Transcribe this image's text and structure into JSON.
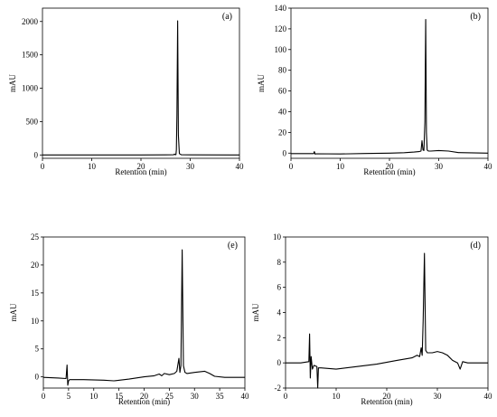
{
  "chart_data": [
    {
      "type": "line",
      "panel_label": "(a)",
      "xlabel": "Retention (min)",
      "ylabel": "mAU",
      "xlim": [
        0,
        40
      ],
      "ylim": [
        -50,
        2200
      ],
      "xticks": [
        0,
        10,
        20,
        30,
        40
      ],
      "yticks": [
        0,
        500,
        1000,
        1500,
        2000
      ],
      "series": [
        {
          "x": [
            0,
            10,
            20,
            25,
            26.6,
            26.8,
            27.0,
            27.1,
            27.2,
            27.3,
            27.45,
            27.6,
            27.8,
            28.2,
            30,
            40
          ],
          "y": [
            0,
            0,
            0,
            2,
            3,
            12,
            3,
            5,
            80,
            600,
            2010,
            300,
            20,
            3,
            1,
            0
          ]
        }
      ]
    },
    {
      "type": "line",
      "panel_label": "(b)",
      "xlabel": "Retention (min)",
      "ylabel": "mAU",
      "xlim": [
        0,
        40
      ],
      "ylim": [
        -5,
        140
      ],
      "xticks": [
        0,
        10,
        20,
        30,
        40
      ],
      "yticks": [
        0,
        20,
        40,
        60,
        80,
        100,
        120,
        140
      ],
      "series": [
        {
          "x": [
            0,
            4.6,
            4.75,
            4.9,
            5.1,
            10,
            15,
            20,
            23,
            25,
            26,
            26.4,
            26.6,
            26.8,
            27.0,
            27.2,
            27.35,
            27.5,
            27.65,
            27.9,
            28.4,
            30,
            32,
            34,
            40
          ],
          "y": [
            -0.5,
            -0.5,
            1.5,
            -1.0,
            -0.6,
            -0.8,
            -0.4,
            0,
            0.4,
            1,
            1.5,
            2,
            12,
            3,
            2.5,
            30,
            129,
            20,
            3,
            2,
            2,
            2.5,
            2,
            0.5,
            0
          ]
        }
      ]
    },
    {
      "type": "line",
      "panel_label": "(e)",
      "xlabel": "Retention (min)",
      "ylabel": "mAU",
      "xlim": [
        0,
        40
      ],
      "ylim": [
        -2,
        25
      ],
      "xticks": [
        0,
        5,
        10,
        15,
        20,
        25,
        30,
        35,
        40
      ],
      "yticks": [
        0,
        5,
        10,
        15,
        20,
        25
      ],
      "series": [
        {
          "x": [
            0,
            3,
            4.5,
            4.7,
            4.85,
            5.0,
            5.2,
            8,
            12,
            14,
            17,
            20,
            22,
            23,
            23.5,
            24,
            25,
            26,
            26.5,
            26.9,
            27.1,
            27.3,
            27.55,
            27.8,
            28.1,
            28.5,
            30,
            31,
            32,
            33,
            34,
            36,
            40
          ],
          "y": [
            -0.1,
            -0.2,
            -0.3,
            2.1,
            -1.5,
            -0.7,
            -0.5,
            -0.5,
            -0.6,
            -0.7,
            -0.4,
            0,
            0.2,
            0.5,
            0.2,
            0.6,
            0.4,
            0.6,
            1,
            3.3,
            0.8,
            2,
            22.7,
            2,
            0.8,
            0.6,
            0.8,
            0.9,
            1.0,
            0.6,
            0.1,
            -0.1,
            -0.1
          ]
        }
      ]
    },
    {
      "type": "line",
      "panel_label": "(d)",
      "xlabel": "Retention (min)",
      "ylabel": "mAU",
      "xlim": [
        0,
        40
      ],
      "ylim": [
        -2,
        10
      ],
      "xticks": [
        0,
        10,
        20,
        30,
        40
      ],
      "yticks": [
        -2,
        0,
        2,
        4,
        6,
        8,
        10
      ],
      "series": [
        {
          "x": [
            0,
            3,
            4.6,
            4.75,
            4.9,
            5.05,
            5.3,
            5.6,
            6.2,
            6.35,
            6.5,
            7,
            10,
            14,
            18,
            22,
            25,
            26,
            26.5,
            26.8,
            27.0,
            27.2,
            27.45,
            27.7,
            28,
            29,
            30,
            31,
            32,
            33,
            34,
            34.5,
            35,
            36,
            38,
            40
          ],
          "y": [
            0,
            0,
            0.1,
            2.3,
            -1.2,
            0.5,
            -0.5,
            -0.2,
            -0.3,
            -2.0,
            -0.4,
            -0.4,
            -0.5,
            -0.3,
            -0.1,
            0.2,
            0.4,
            0.6,
            0.5,
            1.2,
            0.6,
            3.4,
            8.7,
            1.0,
            0.8,
            0.8,
            0.9,
            0.8,
            0.6,
            0.2,
            0.0,
            -0.5,
            0.1,
            0.0,
            0.0,
            0.0
          ]
        }
      ]
    }
  ]
}
